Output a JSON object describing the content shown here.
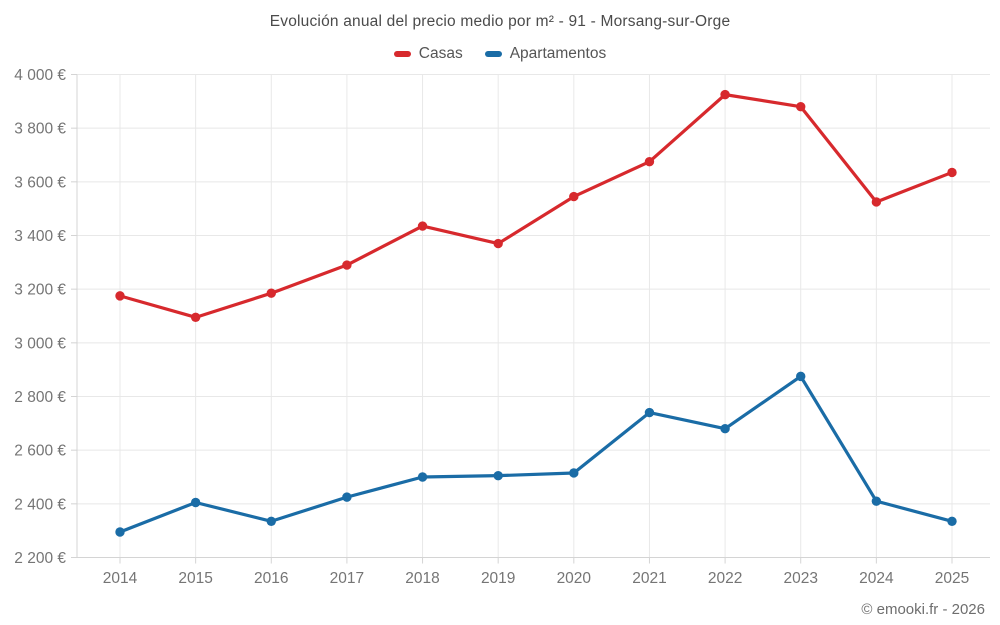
{
  "title": "Evolución anual del precio medio por m² - 91 - Morsang-sur-Orge",
  "footer": "© emooki.fr - 2026",
  "colors": {
    "background": "#ffffff",
    "grid": "#e8e8e8",
    "axis": "#d4d4d4",
    "tick_text": "#757575",
    "title_text": "#4b4b4b",
    "legend_text": "#565656",
    "footer_text": "#6e6e6e"
  },
  "chart_data": {
    "type": "line",
    "title": "Evolución anual del precio medio por m² - 91 - Morsang-sur-Orge",
    "categories": [
      "2014",
      "2015",
      "2016",
      "2017",
      "2018",
      "2019",
      "2020",
      "2021",
      "2022",
      "2023",
      "2024",
      "2025"
    ],
    "series": [
      {
        "name": "Casas",
        "color": "#d7292d",
        "values": [
          3175,
          3095,
          3185,
          3290,
          3435,
          3370,
          3545,
          3675,
          3925,
          3880,
          3525,
          3635
        ]
      },
      {
        "name": "Apartamentos",
        "color": "#1a6ca6",
        "values": [
          2295,
          2405,
          2335,
          2425,
          2500,
          2505,
          2515,
          2740,
          2680,
          2875,
          2410,
          2335
        ]
      }
    ],
    "xlabel": "",
    "ylabel": "",
    "ylim": [
      2200,
      4000
    ],
    "ytick_step": 200,
    "ytick_suffix": " €",
    "grid": true,
    "legend_position": "top",
    "marker": "circle"
  }
}
